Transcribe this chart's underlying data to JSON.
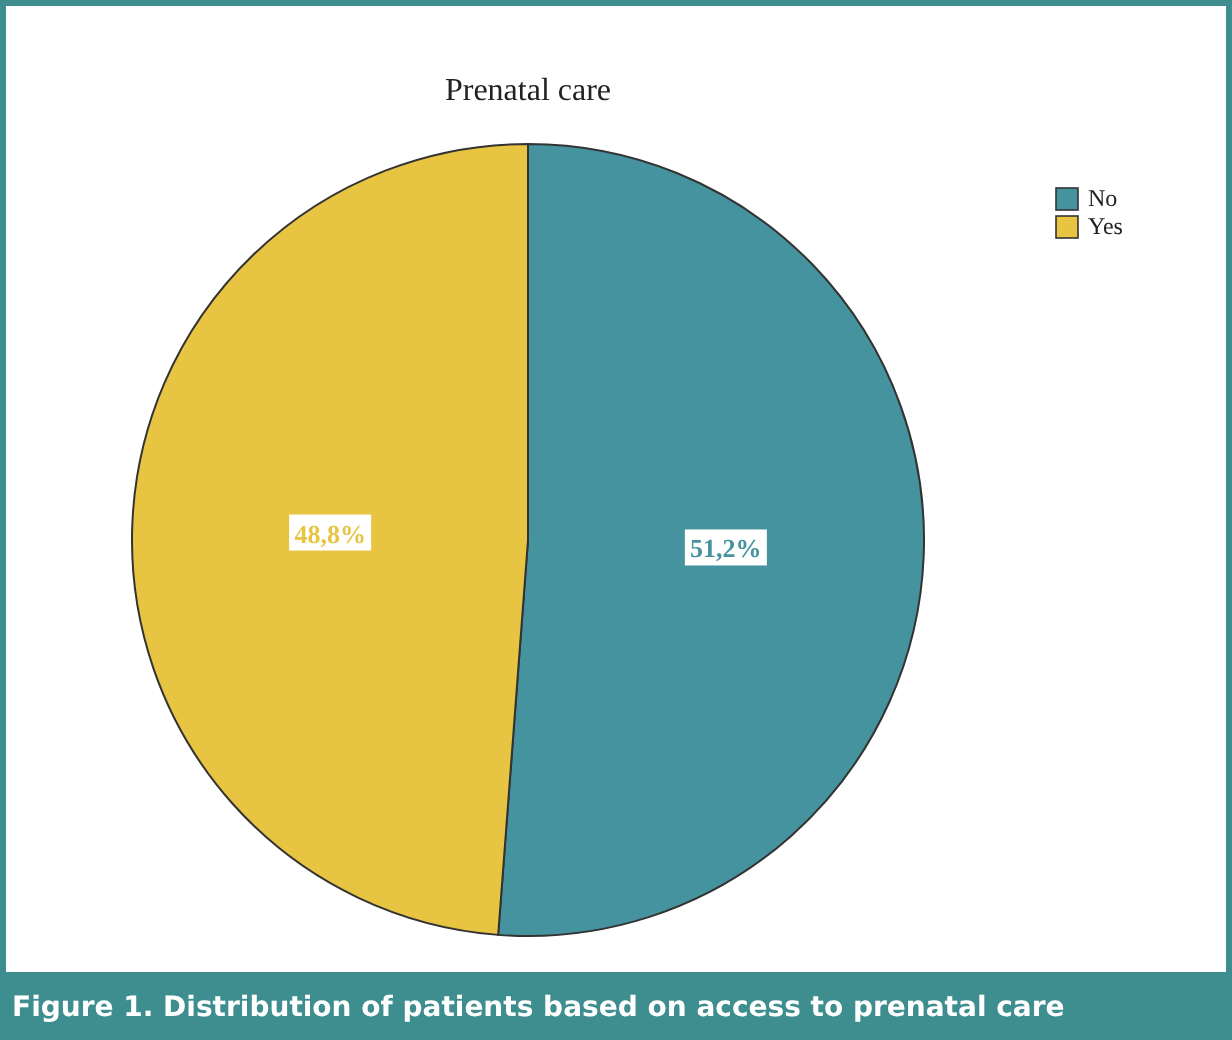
{
  "chart_data": {
    "type": "pie",
    "title": "Prenatal care",
    "categories": [
      "No",
      "Yes"
    ],
    "values": [
      51.2,
      48.8
    ],
    "colors": [
      "#44939e",
      "#e8c443"
    ],
    "value_labels": [
      "51,2%",
      "48,8%"
    ],
    "legend": "top right",
    "annotations": [
      "Figure 1. Distribution of patients based on access to prenatal care"
    ]
  }
}
